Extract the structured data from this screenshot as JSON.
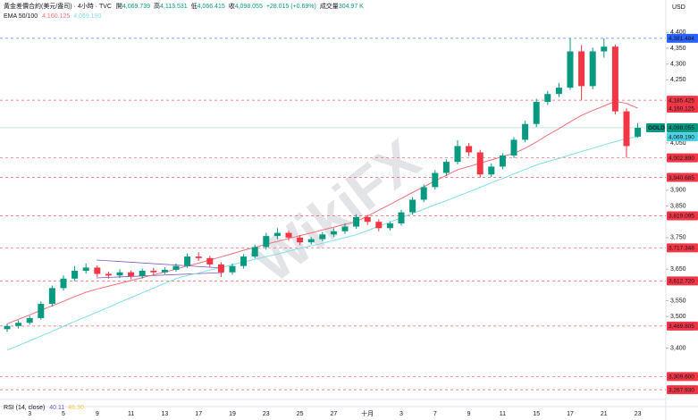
{
  "chart_data": {
    "type": "candlestick",
    "title": "黃金差價合約(美元/盎司) · 4小時 · TVC",
    "ohlc_labels": [
      "開",
      "高",
      "低",
      "收"
    ],
    "ohlc_values": [
      "4,069.739",
      "4,113.531",
      "4,066.415",
      "4,098.055"
    ],
    "change": "+28.015 (+0.69%)",
    "volume_label": "成交量",
    "volume": "304.97 K",
    "currency": "USD",
    "watermark": "WikiFX",
    "indicator": {
      "name": "EMA 50/100",
      "values": [
        "4,160.125",
        "4,069.190"
      ]
    },
    "rsi": {
      "name": "RSI (14, close)",
      "values": [
        "40.11",
        "46.30"
      ],
      "colors": [
        "#7e57c2",
        "#f2c94c"
      ]
    },
    "categories": [
      null,
      null,
      "3",
      null,
      null,
      "5",
      null,
      null,
      "9",
      null,
      null,
      "11",
      null,
      null,
      "13",
      null,
      null,
      "17",
      null,
      null,
      "19",
      null,
      null,
      "23",
      null,
      null,
      "25",
      null,
      null,
      "27",
      null,
      null,
      "十月",
      null,
      null,
      "3",
      null,
      null,
      "7",
      null,
      null,
      "9",
      null,
      null,
      "11",
      null,
      null,
      "15",
      null,
      null,
      "17",
      null,
      null,
      "21",
      null,
      null,
      "23"
    ],
    "open": [
      3460,
      3470,
      3480,
      3495,
      3540,
      3590,
      3620,
      3645,
      3655,
      3635,
      3630,
      3640,
      3628,
      3645,
      3640,
      3648,
      3660,
      3690,
      3685,
      3665,
      3640,
      3660,
      3690,
      3720,
      3755,
      3765,
      3750,
      3735,
      3745,
      3760,
      3770,
      3785,
      3815,
      3800,
      3780,
      3795,
      3830,
      3870,
      3910,
      3955,
      3990,
      4040,
      4020,
      3950,
      3975,
      4010,
      4060,
      4110,
      4180,
      4205,
      4225,
      4340,
      4230,
      4340,
      4355,
      4150,
      4069.739
    ],
    "high": [
      3478,
      3488,
      3502,
      3548,
      3598,
      3630,
      3660,
      3668,
      3662,
      3642,
      3650,
      3646,
      3652,
      3654,
      3656,
      3668,
      3700,
      3704,
      3692,
      3672,
      3668,
      3698,
      3728,
      3765,
      3780,
      3772,
      3758,
      3752,
      3768,
      3780,
      3795,
      3824,
      3822,
      3808,
      3802,
      3838,
      3878,
      3918,
      3964,
      3998,
      4058,
      4050,
      4028,
      3985,
      4018,
      4068,
      4120,
      4190,
      4215,
      4240,
      4381.484,
      4360,
      4352,
      4381,
      4362,
      4160,
      4113.531
    ],
    "low": [
      3452,
      3462,
      3474,
      3490,
      3532,
      3582,
      3612,
      3636,
      3625,
      3620,
      3622,
      3618,
      3620,
      3632,
      3634,
      3642,
      3654,
      3676,
      3656,
      3625,
      3632,
      3652,
      3684,
      3712,
      3745,
      3740,
      3726,
      3728,
      3738,
      3752,
      3762,
      3778,
      3790,
      3770,
      3772,
      3788,
      3822,
      3862,
      3902,
      3946,
      3982,
      4008,
      3940,
      3942,
      3966,
      4002,
      4052,
      4100,
      4170,
      4195,
      4218,
      4185,
      4220,
      4320,
      4140,
      4002.89,
      4066.415
    ],
    "close": [
      3470,
      3480,
      3495,
      3540,
      3590,
      3620,
      3645,
      3655,
      3635,
      3630,
      3640,
      3628,
      3645,
      3640,
      3648,
      3660,
      3690,
      3685,
      3665,
      3640,
      3660,
      3690,
      3720,
      3755,
      3765,
      3750,
      3735,
      3745,
      3760,
      3770,
      3785,
      3815,
      3800,
      3780,
      3795,
      3830,
      3870,
      3910,
      3955,
      3990,
      4040,
      4020,
      3950,
      3975,
      4010,
      4060,
      4110,
      4180,
      4205,
      4225,
      4340,
      4230,
      4340,
      4355,
      4150,
      4040,
      4098.055
    ],
    "up_color": "#089981",
    "down_color": "#f23645",
    "series": [
      {
        "color": "#f0707a",
        "values": [
          3477,
          3491,
          3505,
          3520,
          3534,
          3548,
          3563,
          3577,
          3587,
          3596,
          3605,
          3614,
          3623,
          3632,
          3641,
          3650,
          3660,
          3669,
          3679,
          3689,
          3699,
          3710,
          3719,
          3729,
          3738,
          3747,
          3756,
          3765,
          3774,
          3783,
          3792,
          3801,
          3818,
          3837,
          3855,
          3874,
          3893,
          3911,
          3930,
          3947,
          3965,
          3975,
          3986,
          3996,
          4007,
          4017,
          4033,
          4053,
          4075,
          4095,
          4117,
          4137,
          4153,
          4167,
          4182,
          4175,
          4160.125
        ]
      },
      {
        "color": "#7fdfe6",
        "values": [
          3393,
          3408,
          3423,
          3438,
          3453,
          3469,
          3484,
          3499,
          3514,
          3529,
          3545,
          3560,
          3575,
          3590,
          3605,
          3620,
          3630,
          3638,
          3647,
          3655,
          3664,
          3673,
          3681,
          3690,
          3698,
          3707,
          3716,
          3724,
          3732,
          3741,
          3750,
          3759,
          3772,
          3786,
          3799,
          3813,
          3827,
          3840,
          3854,
          3867,
          3881,
          3895,
          3909,
          3924,
          3937,
          3952,
          3966,
          3980,
          3991,
          4001,
          4012,
          4023,
          4033,
          4044,
          4054,
          4064,
          4069.19
        ]
      }
    ],
    "levels": [
      {
        "value": 4381.484,
        "label": "4,381.484",
        "color": "#2962ff",
        "dashed": true
      },
      {
        "value": 4185.425,
        "label": "4,185.425",
        "color": "#f23645",
        "dashed": true
      },
      {
        "value": 4160.125,
        "label": "4,160.125",
        "color": "#f23645",
        "dashed": false
      },
      {
        "value": 4098.055,
        "label": "4,098.055",
        "color": "#089981",
        "dashed": false,
        "tag": "GOLD"
      },
      {
        "value": 4069.19,
        "label": "4,069.190",
        "color": "#4dd0e1",
        "dashed": false
      },
      {
        "value": 4002.89,
        "label": "4,002.890",
        "color": "#f23645",
        "dashed": true
      },
      {
        "value": 3940.685,
        "label": "3,940.685",
        "color": "#f23645",
        "dashed": true
      },
      {
        "value": 3819.095,
        "label": "3,819.095",
        "color": "#f23645",
        "dashed": true
      },
      {
        "value": 3717.348,
        "label": "3,717.348",
        "color": "#f23645",
        "dashed": true
      },
      {
        "value": 3612.72,
        "label": "3,612.720",
        "color": "#f23645",
        "dashed": true
      },
      {
        "value": 3469.805,
        "label": "3,469.805",
        "color": "#f23645",
        "dashed": true
      },
      {
        "value": 3309.6,
        "label": "3,309.600",
        "color": "#f23645",
        "dashed": true
      },
      {
        "value": 3267.93,
        "label": "3,267.930",
        "color": "#f23645",
        "dashed": true
      }
    ],
    "ylim": [
      3240,
      4500
    ],
    "yticks": [
      {
        "value": 4400,
        "label": "4,400"
      },
      {
        "value": 4350,
        "label": "4,350"
      },
      {
        "value": 4300,
        "label": "4,300"
      },
      {
        "value": 4250,
        "label": "4,250"
      },
      {
        "value": 4050,
        "label": "4,050"
      },
      {
        "value": 3900,
        "label": "3,900"
      },
      {
        "value": 3850,
        "label": "3,850"
      },
      {
        "value": 3750,
        "label": "3,750"
      },
      {
        "value": 3650,
        "label": "3,650"
      },
      {
        "value": 3550,
        "label": "3,550"
      },
      {
        "value": 3500,
        "label": "3,500"
      },
      {
        "value": 3400,
        "label": "3,400"
      }
    ]
  }
}
